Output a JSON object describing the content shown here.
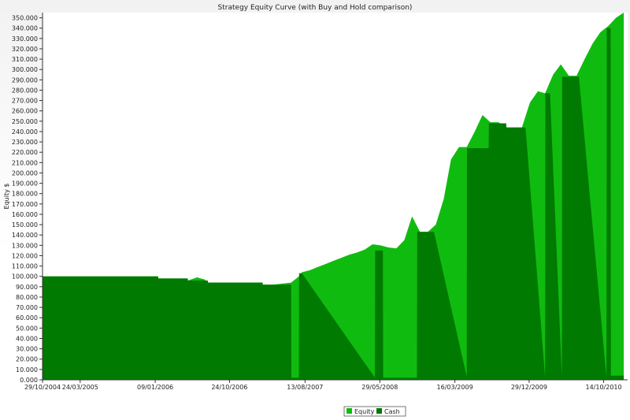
{
  "chart_data": {
    "type": "area",
    "title": "Strategy Equity Curve (with Buy and Hold comparison)",
    "ylabel": "Equity $",
    "xlabel": "",
    "ylim": [
      0,
      355000
    ],
    "yticks": [
      0,
      10000,
      20000,
      30000,
      40000,
      50000,
      60000,
      70000,
      80000,
      90000,
      100000,
      110000,
      120000,
      130000,
      140000,
      150000,
      160000,
      170000,
      180000,
      190000,
      200000,
      210000,
      220000,
      230000,
      240000,
      250000,
      260000,
      270000,
      280000,
      290000,
      300000,
      310000,
      320000,
      330000,
      340000,
      350000
    ],
    "ytick_labels": [
      "0.000",
      "10.000",
      "20.000",
      "30.000",
      "40.000",
      "50.000",
      "60.000",
      "70.000",
      "80.000",
      "90.000",
      "100.000",
      "110.000",
      "120.000",
      "130.000",
      "140.000",
      "150.000",
      "160.000",
      "170.000",
      "180.000",
      "190.000",
      "200.000",
      "210.000",
      "220.000",
      "230.000",
      "240.000",
      "250.000",
      "260.000",
      "270.000",
      "280.000",
      "290.000",
      "300.000",
      "310.000",
      "320.000",
      "330.000",
      "340.000",
      "350.000"
    ],
    "xlim": [
      "2004-10-29",
      "2011-01-15"
    ],
    "xticks": [
      "2004-10-29",
      "2005-03-24",
      "2006-01-09",
      "2006-10-24",
      "2007-08-13",
      "2008-05-29",
      "2009-03-16",
      "2009-12-29",
      "2010-10-14"
    ],
    "xtick_labels": [
      "29/10/2004",
      "24/03/2005",
      "09/01/2006",
      "24/10/2006",
      "13/08/2007",
      "29/05/2008",
      "16/03/2009",
      "29/12/2009",
      "14/10/2010"
    ],
    "grid": false,
    "legend": "bottom-center",
    "series": [
      {
        "name": "Equity",
        "color": "#10bb10",
        "x": [
          "2004-10-29",
          "2006-01-20",
          "2006-01-21",
          "2006-05-15",
          "2006-05-16",
          "2006-06-20",
          "2006-07-20",
          "2006-08-01",
          "2006-08-02",
          "2007-03-01",
          "2007-03-02",
          "2007-04-10",
          "2007-04-11",
          "2007-06-20",
          "2007-07-20",
          "2007-08-01",
          "2007-09-01",
          "2007-10-01",
          "2007-11-01",
          "2007-12-01",
          "2008-01-01",
          "2008-02-01",
          "2008-03-01",
          "2008-04-01",
          "2008-05-01",
          "2008-06-01",
          "2008-07-01",
          "2008-08-01",
          "2008-09-01",
          "2008-10-01",
          "2008-11-01",
          "2008-12-01",
          "2009-01-01",
          "2009-02-01",
          "2009-03-01",
          "2009-04-01",
          "2009-05-01",
          "2009-06-01",
          "2009-07-01",
          "2009-08-01",
          "2009-09-01",
          "2009-10-01",
          "2009-11-01",
          "2009-12-01",
          "2010-01-01",
          "2010-02-01",
          "2010-03-01",
          "2010-04-01",
          "2010-05-01",
          "2010-06-01",
          "2010-07-01",
          "2010-08-01",
          "2010-09-01",
          "2010-10-01",
          "2010-11-01",
          "2010-12-01",
          "2010-12-31"
        ],
        "values": [
          100000,
          100000,
          98000,
          98000,
          96000,
          99000,
          97000,
          94000,
          94000,
          94000,
          92000,
          92000,
          92000,
          94000,
          100000,
          104000,
          106000,
          109000,
          112000,
          115000,
          118000,
          121000,
          123000,
          126000,
          131000,
          130000,
          128000,
          127000,
          135000,
          158000,
          143000,
          143000,
          150000,
          175000,
          213000,
          225000,
          225000,
          240000,
          256000,
          249000,
          249000,
          244000,
          244000,
          244000,
          268000,
          279000,
          277000,
          295000,
          305000,
          294000,
          294000,
          310000,
          325000,
          336000,
          342000,
          350000,
          355000
        ]
      },
      {
        "name": "Cash",
        "color": "#007a00",
        "x": [
          "2004-10-29",
          "2006-01-20",
          "2006-01-21",
          "2006-05-15",
          "2006-05-16",
          "2006-08-01",
          "2006-08-02",
          "2007-03-01",
          "2007-03-02",
          "2007-06-20",
          "2007-06-21",
          "2007-07-20",
          "2007-07-21",
          "2007-08-01",
          "2008-05-10",
          "2008-05-11",
          "2008-06-10",
          "2008-06-11",
          "2008-07-10",
          "2008-10-20",
          "2008-10-21",
          "2008-12-25",
          "2009-05-01",
          "2009-05-02",
          "2009-06-10",
          "2009-07-25",
          "2009-07-26",
          "2009-10-01",
          "2009-10-02",
          "2009-12-15",
          "2010-03-01",
          "2010-03-02",
          "2010-03-20",
          "2010-05-05",
          "2010-05-06",
          "2010-07-10",
          "2010-10-25",
          "2010-10-26",
          "2010-11-10",
          "2010-11-11",
          "2010-12-31"
        ],
        "values": [
          100000,
          100000,
          98000,
          98000,
          96000,
          96000,
          94000,
          94000,
          92000,
          92000,
          2000,
          2000,
          103000,
          103000,
          2000,
          125000,
          125000,
          2000,
          2000,
          2000,
          143000,
          143000,
          3000,
          224000,
          224000,
          224000,
          248000,
          248000,
          244000,
          244000,
          2000,
          277000,
          277000,
          2000,
          293000,
          293000,
          2000,
          340000,
          340000,
          4000,
          4000
        ]
      }
    ]
  }
}
